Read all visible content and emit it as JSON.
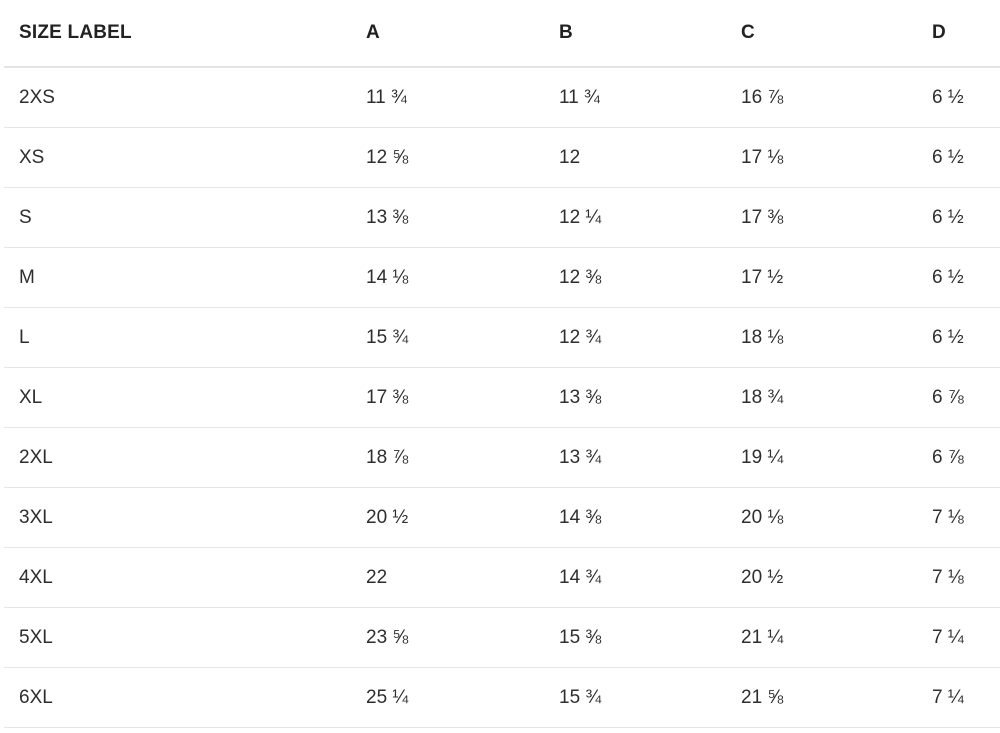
{
  "table": {
    "headers": [
      "SIZE LABEL",
      "A",
      "B",
      "C",
      "D"
    ],
    "rows": [
      [
        "2XS",
        "11 ¾",
        "11 ¾",
        "16 ⅞",
        "6 ½"
      ],
      [
        "XS",
        "12 ⅝",
        "12",
        "17 ⅛",
        "6 ½"
      ],
      [
        "S",
        "13 ⅜",
        "12 ¼",
        "17 ⅜",
        "6 ½"
      ],
      [
        "M",
        "14 ⅛",
        "12 ⅜",
        "17 ½",
        "6 ½"
      ],
      [
        "L",
        "15 ¾",
        "12 ¾",
        "18 ⅛",
        "6 ½"
      ],
      [
        "XL",
        "17 ⅜",
        "13 ⅜",
        "18 ¾",
        "6 ⅞"
      ],
      [
        "2XL",
        "18 ⅞",
        "13 ¾",
        "19 ¼",
        "6 ⅞"
      ],
      [
        "3XL",
        "20 ½",
        "14 ⅜",
        "20 ⅛",
        "7 ⅛"
      ],
      [
        "4XL",
        "22",
        "14 ¾",
        "20 ½",
        "7 ⅛"
      ],
      [
        "5XL",
        "23 ⅝",
        "15 ⅜",
        "21 ¼",
        "7 ¼"
      ],
      [
        "6XL",
        "25 ¼",
        "15 ¾",
        "21 ⅝",
        "7 ¼"
      ]
    ]
  }
}
